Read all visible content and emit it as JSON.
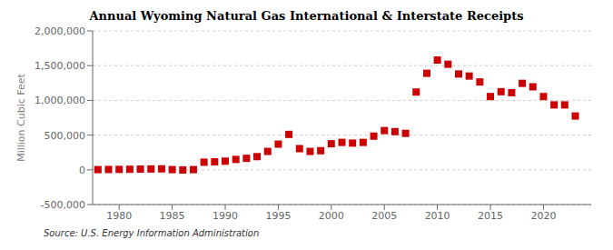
{
  "chart_data": {
    "type": "scatter",
    "title": "Annual Wyoming Natural Gas International & Interstate Receipts",
    "ylabel": "Million Cubic Feet",
    "annotations": [
      "Source: U.S. Energy Information Administration"
    ],
    "color": "#cc0000",
    "marker": "square",
    "grid": true,
    "xlim": [
      1977.5,
      2024.5
    ],
    "xticks": [
      1980,
      1985,
      1990,
      1995,
      2000,
      2005,
      2010,
      2015,
      2020
    ],
    "ylim": [
      -500000,
      2000000
    ],
    "yticks": [
      {
        "value": -500000,
        "label": "-500,000"
      },
      0,
      {
        "value": 500000,
        "label": "500,000"
      },
      {
        "value": 1000000,
        "label": "1,000,000"
      },
      {
        "value": 1500000,
        "label": "1,500,000"
      },
      {
        "value": 2000000,
        "label": "2,000,000"
      }
    ],
    "x": [
      1978,
      1979,
      1980,
      1981,
      1982,
      1983,
      1984,
      1985,
      1986,
      1987,
      1988,
      1989,
      1990,
      1991,
      1992,
      1993,
      1994,
      1995,
      1996,
      1997,
      1998,
      1999,
      2000,
      2001,
      2002,
      2003,
      2004,
      2005,
      2006,
      2007,
      2008,
      2009,
      2010,
      2011,
      2012,
      2013,
      2014,
      2015,
      2016,
      2017,
      2018,
      2019,
      2020,
      2021,
      2022,
      2023
    ],
    "values": [
      3000,
      5000,
      6000,
      8000,
      10000,
      12000,
      14000,
      3000,
      -2000,
      3000,
      110000,
      115000,
      125000,
      150000,
      165000,
      190000,
      265000,
      370000,
      510000,
      305000,
      265000,
      275000,
      375000,
      395000,
      385000,
      395000,
      485000,
      565000,
      550000,
      525000,
      1120000,
      1390000,
      1580000,
      1520000,
      1380000,
      1350000,
      1265000,
      1055000,
      1125000,
      1110000,
      1245000,
      1195000,
      1055000,
      935000,
      935000,
      775000
    ]
  }
}
